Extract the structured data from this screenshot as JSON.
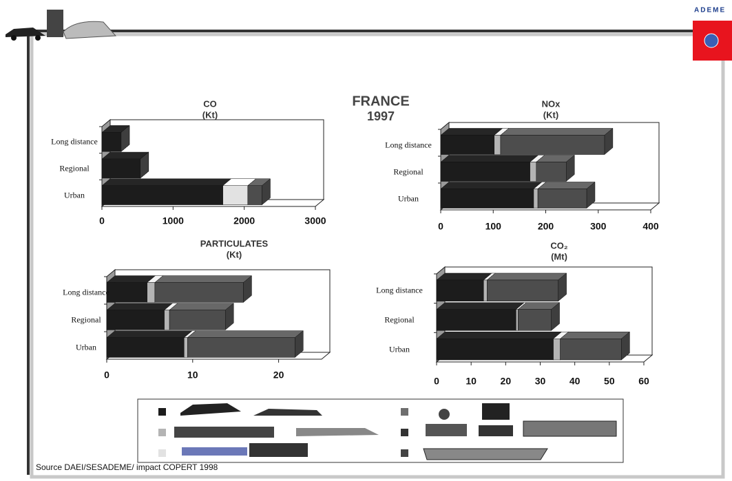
{
  "header": {
    "logo_text": "ADEME"
  },
  "page_title": "FRANCE",
  "page_subtitle": "1997",
  "chart_data": [
    {
      "type": "bar",
      "orientation": "horizontal",
      "stacked": true,
      "title": "CO",
      "subtitle": "(Kt)",
      "categories": [
        "Long distance",
        "Regional",
        "Urban"
      ],
      "series": [
        {
          "color": "#1c1c1c",
          "values": [
            270,
            540,
            1700
          ]
        },
        {
          "color": "#e2e2e2",
          "values": [
            0,
            0,
            350
          ]
        },
        {
          "color": "#4d4d4d",
          "values": [
            0,
            0,
            200
          ]
        }
      ],
      "xlim": [
        0,
        3000
      ],
      "xticks": [
        0,
        1000,
        2000,
        3000
      ]
    },
    {
      "type": "bar",
      "orientation": "horizontal",
      "stacked": true,
      "title": "NOx",
      "subtitle": "(Kt)",
      "categories": [
        "Long distance",
        "Regional",
        "Urban"
      ],
      "series": [
        {
          "color": "#1c1c1c",
          "values": [
            102,
            170,
            177
          ]
        },
        {
          "color": "#b4b4b4",
          "values": [
            12,
            12,
            8
          ]
        },
        {
          "color": "#4d4d4d",
          "values": [
            198,
            57,
            93
          ]
        }
      ],
      "xlim": [
        0,
        400
      ],
      "xticks": [
        0,
        100,
        200,
        300,
        400
      ]
    },
    {
      "type": "bar",
      "orientation": "horizontal",
      "stacked": true,
      "title": "PARTICULATES",
      "subtitle": "(Kt)",
      "categories": [
        "Long distance",
        "Regional",
        "Urban"
      ],
      "series": [
        {
          "color": "#1c1c1c",
          "values": [
            4.7,
            6.7,
            9.0
          ]
        },
        {
          "color": "#b4b4b4",
          "values": [
            0.9,
            0.6,
            0.4
          ]
        },
        {
          "color": "#4d4d4d",
          "values": [
            10.3,
            6.5,
            12.5
          ]
        }
      ],
      "xlim": [
        0,
        25
      ],
      "xticks": [
        0,
        10,
        20
      ]
    },
    {
      "type": "bar",
      "orientation": "horizontal",
      "stacked": true,
      "title": "CO₂",
      "subtitle": "(Mt)",
      "categories": [
        "Long distance",
        "Regional",
        "Urban"
      ],
      "series": [
        {
          "color": "#1c1c1c",
          "values": [
            13.6,
            23.0,
            33.8
          ]
        },
        {
          "color": "#b4b4b4",
          "values": [
            1.0,
            0.6,
            2.0
          ]
        },
        {
          "color": "#4d4d4d",
          "values": [
            20.6,
            9.6,
            17.7
          ]
        }
      ],
      "xlim": [
        0,
        60
      ],
      "xticks": [
        0,
        10,
        20,
        30,
        40,
        50,
        60
      ]
    }
  ],
  "source": "Source DAEI/SESADEME/ impact COPERT 1998"
}
